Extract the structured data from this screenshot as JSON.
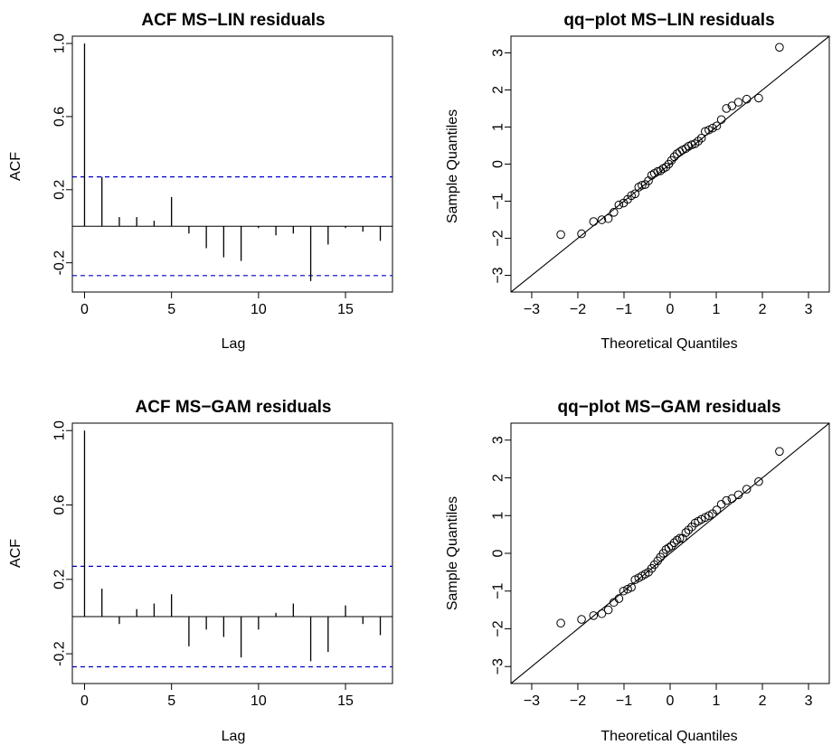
{
  "chart_data": [
    {
      "type": "bar",
      "title": "ACF MS−LIN residuals",
      "xlabel": "Lag",
      "ylabel": "ACF",
      "xlim": [
        -0.7,
        17.7
      ],
      "ylim": [
        -0.36,
        1.04
      ],
      "xticks": [
        {
          "v": 0,
          "label": "0"
        },
        {
          "v": 5,
          "label": "5"
        },
        {
          "v": 10,
          "label": "10"
        },
        {
          "v": 15,
          "label": "15"
        }
      ],
      "yticks": [
        {
          "v": -0.2,
          "label": "-0.2"
        },
        {
          "v": 0.2,
          "label": "0.2"
        },
        {
          "v": 0.6,
          "label": "0.6"
        },
        {
          "v": 1.0,
          "label": "1.0"
        }
      ],
      "lags": [
        0,
        1,
        2,
        3,
        4,
        5,
        6,
        7,
        8,
        9,
        10,
        11,
        12,
        13,
        14,
        15,
        16,
        17
      ],
      "values": [
        1.0,
        0.27,
        0.05,
        0.05,
        0.03,
        0.16,
        -0.04,
        -0.12,
        -0.17,
        -0.19,
        -0.01,
        -0.05,
        -0.04,
        -0.3,
        -0.1,
        -0.01,
        -0.03,
        -0.08
      ],
      "confidence_bounds": [
        0.27,
        -0.27
      ],
      "bound_color": "#0000cc",
      "grid": false
    },
    {
      "type": "scatter",
      "title": "qq−plot MS−LIN residuals",
      "xlabel": "Theoretical Quantiles",
      "ylabel": "Sample Quantiles",
      "xlim": [
        -3.45,
        3.45
      ],
      "ylim": [
        -3.45,
        3.45
      ],
      "xticks": [
        {
          "v": -3,
          "label": "−3"
        },
        {
          "v": -2,
          "label": "−2"
        },
        {
          "v": -1,
          "label": "−1"
        },
        {
          "v": 0,
          "label": "0"
        },
        {
          "v": 1,
          "label": "1"
        },
        {
          "v": 2,
          "label": "2"
        },
        {
          "v": 3,
          "label": "3"
        }
      ],
      "yticks": [
        {
          "v": -3,
          "label": "−3"
        },
        {
          "v": -2,
          "label": "−2"
        },
        {
          "v": -1,
          "label": "−1"
        },
        {
          "v": 0,
          "label": "0"
        },
        {
          "v": 1,
          "label": "1"
        },
        {
          "v": 2,
          "label": "2"
        },
        {
          "v": 3,
          "label": "3"
        }
      ],
      "x": [
        -2.37,
        -1.92,
        -1.66,
        -1.48,
        -1.34,
        -1.22,
        -1.11,
        -1.01,
        -0.92,
        -0.84,
        -0.76,
        -0.68,
        -0.61,
        -0.54,
        -0.47,
        -0.4,
        -0.34,
        -0.27,
        -0.21,
        -0.15,
        -0.09,
        -0.03,
        0.03,
        0.09,
        0.15,
        0.21,
        0.27,
        0.34,
        0.4,
        0.47,
        0.54,
        0.61,
        0.68,
        0.76,
        0.84,
        0.92,
        1.01,
        1.11,
        1.22,
        1.34,
        1.48,
        1.66,
        1.92,
        2.37
      ],
      "y": [
        -1.9,
        -1.88,
        -1.55,
        -1.5,
        -1.47,
        -1.3,
        -1.1,
        -1.05,
        -0.95,
        -0.85,
        -0.8,
        -0.62,
        -0.57,
        -0.55,
        -0.45,
        -0.3,
        -0.25,
        -0.2,
        -0.18,
        -0.12,
        -0.08,
        0.0,
        0.1,
        0.2,
        0.28,
        0.33,
        0.38,
        0.42,
        0.48,
        0.52,
        0.55,
        0.62,
        0.7,
        0.88,
        0.92,
        0.97,
        1.03,
        1.2,
        1.5,
        1.57,
        1.67,
        1.75,
        1.78,
        3.15
      ],
      "reference_line": {
        "intercept": 0,
        "slope": 1
      },
      "grid": false
    },
    {
      "type": "bar",
      "title": "ACF MS−GAM residuals",
      "xlabel": "Lag",
      "ylabel": "ACF",
      "xlim": [
        -0.7,
        17.7
      ],
      "ylim": [
        -0.36,
        1.04
      ],
      "xticks": [
        {
          "v": 0,
          "label": "0"
        },
        {
          "v": 5,
          "label": "5"
        },
        {
          "v": 10,
          "label": "10"
        },
        {
          "v": 15,
          "label": "15"
        }
      ],
      "yticks": [
        {
          "v": -0.2,
          "label": "-0.2"
        },
        {
          "v": 0.2,
          "label": "0.2"
        },
        {
          "v": 0.6,
          "label": "0.6"
        },
        {
          "v": 1.0,
          "label": "1.0"
        }
      ],
      "lags": [
        0,
        1,
        2,
        3,
        4,
        5,
        6,
        7,
        8,
        9,
        10,
        11,
        12,
        13,
        14,
        15,
        16,
        17
      ],
      "values": [
        1.0,
        0.15,
        -0.04,
        0.04,
        0.07,
        0.12,
        -0.16,
        -0.07,
        -0.11,
        -0.22,
        -0.07,
        0.02,
        0.07,
        -0.24,
        -0.19,
        0.06,
        -0.04,
        -0.1
      ],
      "confidence_bounds": [
        0.27,
        -0.27
      ],
      "bound_color": "#0000cc",
      "grid": false
    },
    {
      "type": "scatter",
      "title": "qq−plot MS−GAM residuals",
      "xlabel": "Theoretical Quantiles",
      "ylabel": "Sample Quantiles",
      "xlim": [
        -3.45,
        3.45
      ],
      "ylim": [
        -3.45,
        3.45
      ],
      "xticks": [
        {
          "v": -3,
          "label": "−3"
        },
        {
          "v": -2,
          "label": "−2"
        },
        {
          "v": -1,
          "label": "−1"
        },
        {
          "v": 0,
          "label": "0"
        },
        {
          "v": 1,
          "label": "1"
        },
        {
          "v": 2,
          "label": "2"
        },
        {
          "v": 3,
          "label": "3"
        }
      ],
      "yticks": [
        {
          "v": -3,
          "label": "−3"
        },
        {
          "v": -2,
          "label": "−2"
        },
        {
          "v": -1,
          "label": "−1"
        },
        {
          "v": 0,
          "label": "0"
        },
        {
          "v": 1,
          "label": "1"
        },
        {
          "v": 2,
          "label": "2"
        },
        {
          "v": 3,
          "label": "3"
        }
      ],
      "x": [
        -2.37,
        -1.92,
        -1.66,
        -1.48,
        -1.34,
        -1.22,
        -1.11,
        -1.01,
        -0.92,
        -0.84,
        -0.76,
        -0.68,
        -0.61,
        -0.54,
        -0.47,
        -0.4,
        -0.34,
        -0.27,
        -0.21,
        -0.15,
        -0.09,
        -0.03,
        0.03,
        0.09,
        0.15,
        0.21,
        0.27,
        0.34,
        0.4,
        0.47,
        0.54,
        0.61,
        0.68,
        0.76,
        0.84,
        0.92,
        1.01,
        1.11,
        1.22,
        1.34,
        1.48,
        1.66,
        1.92,
        2.37
      ],
      "y": [
        -1.85,
        -1.75,
        -1.65,
        -1.6,
        -1.5,
        -1.3,
        -1.2,
        -1.0,
        -0.95,
        -0.9,
        -0.7,
        -0.65,
        -0.6,
        -0.55,
        -0.5,
        -0.4,
        -0.3,
        -0.2,
        -0.1,
        0.0,
        0.1,
        0.15,
        0.2,
        0.28,
        0.35,
        0.4,
        0.4,
        0.55,
        0.62,
        0.7,
        0.8,
        0.85,
        0.9,
        0.95,
        1.0,
        1.05,
        1.15,
        1.3,
        1.4,
        1.45,
        1.55,
        1.7,
        1.9,
        2.7
      ],
      "reference_line": {
        "intercept": 0,
        "slope": 1
      },
      "grid": false
    }
  ]
}
